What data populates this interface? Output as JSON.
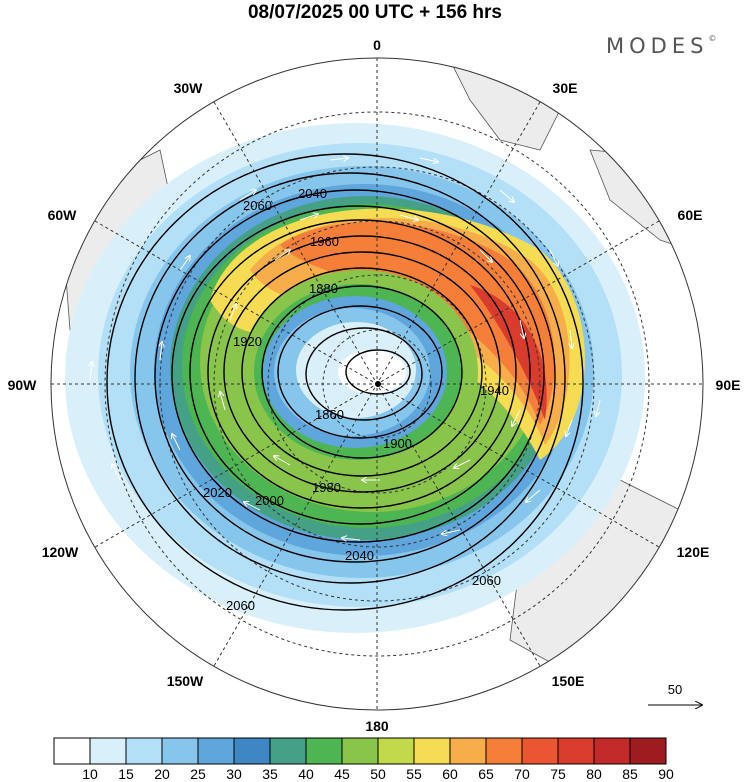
{
  "title": "08/07/2025  00 UTC  + 156 hrs",
  "brand": "MODES",
  "brand_mark": "©",
  "longitude_labels": {
    "lon_0": "0",
    "lon_30e": "30E",
    "lon_60e": "60E",
    "lon_90e": "90E",
    "lon_120e": "120E",
    "lon_150e": "150E",
    "lon_180": "180",
    "lon_150w": "150W",
    "lon_120w": "120W",
    "lon_90w": "90W",
    "lon_60w": "60W",
    "lon_30w": "30W"
  },
  "contour_labels": [
    "2060",
    "2040",
    "2020",
    "2000",
    "1980",
    "1960",
    "1940",
    "1920",
    "1900",
    "1880",
    "1860"
  ],
  "reference_vector": {
    "label": "50"
  },
  "colorbar": {
    "ticks": [
      "10",
      "15",
      "20",
      "25",
      "30",
      "35",
      "40",
      "45",
      "50",
      "55",
      "60",
      "65",
      "70",
      "75",
      "80",
      "85",
      "90"
    ],
    "colors": [
      "#ffffff",
      "#d9f0fb",
      "#b3e0f7",
      "#86c6ec",
      "#5fa6dc",
      "#3f86c4",
      "#45a186",
      "#4db552",
      "#89c54a",
      "#c2d94a",
      "#f6dc52",
      "#f7ad4a",
      "#f57e39",
      "#ea5631",
      "#d93b2c",
      "#c22a2a",
      "#9e1c20"
    ]
  }
}
